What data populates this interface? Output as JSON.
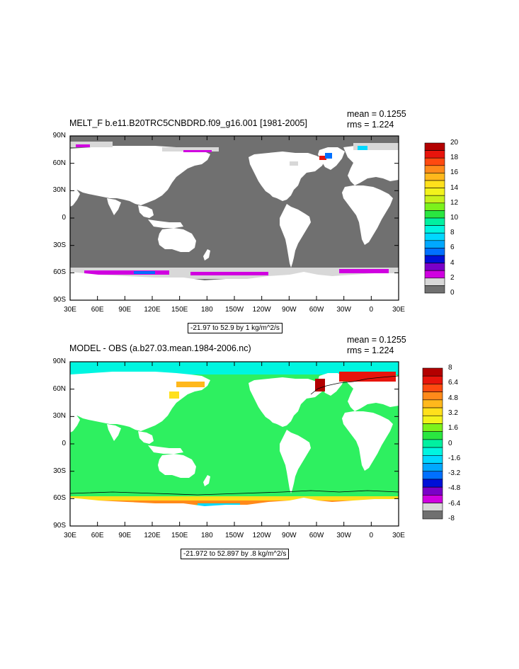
{
  "panels": [
    {
      "title": "MELT_F b.e11.B20TRC5CNBDRD.f09_g16.001 [1981-2005]",
      "mean": "mean = 0.1255",
      "rms": "rms = 1.224",
      "range": "-21.97 to 52.9 by 1 kg/m^2/s",
      "lat_labels": [
        "90N",
        "60N",
        "30N",
        "0",
        "30S",
        "60S",
        "90S"
      ],
      "lon_labels": [
        "30E",
        "60E",
        "90E",
        "120E",
        "150E",
        "180",
        "150W",
        "120W",
        "90W",
        "60W",
        "30W",
        "0",
        "30E"
      ],
      "colorbar": {
        "labels": [
          "20",
          "18",
          "16",
          "14",
          "12",
          "10",
          "8",
          "6",
          "4",
          "2",
          "0"
        ],
        "colors": [
          "#b30000",
          "#e8140c",
          "#ff4a10",
          "#ff8a1a",
          "#ffb81c",
          "#ffe01c",
          "#f2f21c",
          "#c8f01c",
          "#7cf21c",
          "#2ae640",
          "#00f0a0",
          "#00f5e0",
          "#00d8ff",
          "#00a8ff",
          "#0070ff",
          "#0010d8",
          "#7a00c8",
          "#d000e0",
          "#d8d8d8",
          "#707070"
        ]
      }
    },
    {
      "title": "MODEL - OBS (a.b27.03.mean.1984-2006.nc)",
      "mean": "mean = 0.1255",
      "rms": "rms = 1.224",
      "range": "-21.972 to 52.897 by .8 kg/m^2/s",
      "lat_labels": [
        "90N",
        "60N",
        "30N",
        "0",
        "30S",
        "60S",
        "90S"
      ],
      "lon_labels": [
        "30E",
        "60E",
        "90E",
        "120E",
        "150E",
        "180",
        "150W",
        "120W",
        "90W",
        "60W",
        "30W",
        "0",
        "30E"
      ],
      "colorbar": {
        "labels": [
          "8",
          "6.4",
          "4.8",
          "3.2",
          "1.6",
          "0",
          "-1.6",
          "-3.2",
          "-4.8",
          "-6.4",
          "-8"
        ],
        "colors": [
          "#b30000",
          "#e8140c",
          "#ff4a10",
          "#ff8a1a",
          "#ffb81c",
          "#ffe01c",
          "#f2f21c",
          "#7cf21c",
          "#2ae640",
          "#00f0a0",
          "#00f5e0",
          "#00d8ff",
          "#00a8ff",
          "#0070ff",
          "#0010d8",
          "#7a00c8",
          "#d000e0",
          "#d8d8d8",
          "#707070"
        ]
      }
    }
  ],
  "colors": {
    "ocean_top": "#707070",
    "ocean_bottom": "#2ef060",
    "land": "#ffffff"
  }
}
